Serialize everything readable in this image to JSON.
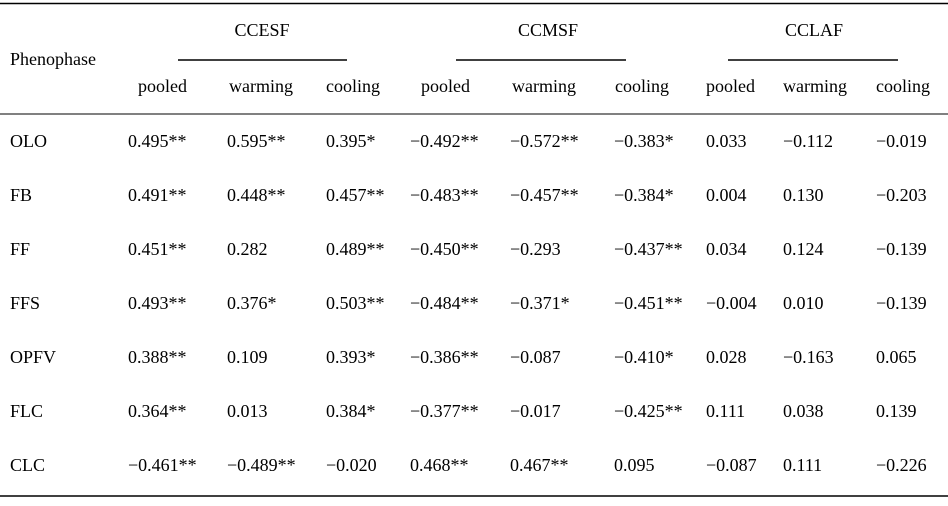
{
  "table": {
    "header": {
      "row_label": "Phenophase",
      "groups": [
        "CCESF",
        "CCMSF",
        "CCLAF"
      ],
      "subheaders": [
        "pooled",
        "warming",
        "cooling",
        "pooled",
        "warming",
        "cooling",
        "pooled",
        "warming",
        "cooling"
      ]
    },
    "rows": [
      {
        "label": "OLO",
        "cells": [
          "0.495**",
          "0.595**",
          "0.395*",
          "−0.492**",
          "−0.572**",
          "−0.383*",
          "0.033",
          "−0.112",
          "−0.019"
        ]
      },
      {
        "label": "FB",
        "cells": [
          "0.491**",
          "0.448**",
          "0.457**",
          "−0.483**",
          "−0.457**",
          "−0.384*",
          "0.004",
          "0.130",
          "−0.203"
        ]
      },
      {
        "label": "FF",
        "cells": [
          "0.451**",
          "0.282",
          "0.489**",
          "−0.450**",
          "−0.293",
          "−0.437**",
          "0.034",
          "0.124",
          "−0.139"
        ]
      },
      {
        "label": "FFS",
        "cells": [
          "0.493**",
          "0.376*",
          "0.503**",
          "−0.484**",
          "−0.371*",
          "−0.451**",
          "−0.004",
          "0.010",
          "−0.139"
        ]
      },
      {
        "label": "OPFV",
        "cells": [
          "0.388**",
          "0.109",
          "0.393*",
          "−0.386**",
          "−0.087",
          "−0.410*",
          "0.028",
          "−0.163",
          "0.065"
        ]
      },
      {
        "label": "FLC",
        "cells": [
          "0.364**",
          "0.013",
          "0.384*",
          "−0.377**",
          "−0.017",
          "−0.425**",
          "0.111",
          "0.038",
          "0.139"
        ]
      },
      {
        "label": "CLC",
        "cells": [
          "−0.461**",
          "−0.489**",
          "−0.020",
          "0.468**",
          "0.467**",
          "0.095",
          "−0.087",
          "0.111",
          "−0.226"
        ]
      }
    ]
  }
}
